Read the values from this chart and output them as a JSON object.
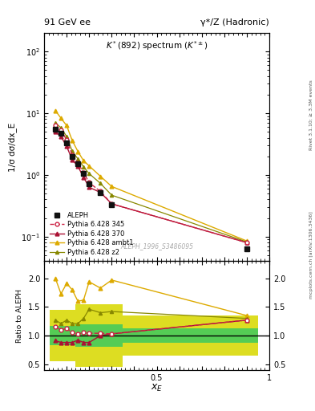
{
  "title_top_left": "91 GeV ee",
  "title_top_right": "γ*/Z (Hadronic)",
  "plot_title": "K*(892) spectrum (K*±)",
  "xlabel": "x_E",
  "ylabel_main": "1/σ dσ/dx_E",
  "ylabel_ratio": "Ratio to ALEPH",
  "watermark": "ALEPH_1996_S3486095",
  "right_label_top": "Rivet 3.1.10; ≥ 3.3M events",
  "right_label_bot": "mcplots.cern.ch [arXiv:1306.3436]",
  "aleph_x": [
    0.05,
    0.075,
    0.1,
    0.125,
    0.15,
    0.175,
    0.2,
    0.25,
    0.3,
    0.9
  ],
  "aleph_y": [
    5.5,
    4.8,
    3.3,
    2.0,
    1.5,
    1.05,
    0.72,
    0.52,
    0.33,
    0.063
  ],
  "p345_x": [
    0.05,
    0.075,
    0.1,
    0.125,
    0.15,
    0.175,
    0.2,
    0.25,
    0.3,
    0.9
  ],
  "p345_y": [
    6.3,
    5.3,
    3.7,
    2.1,
    1.55,
    1.1,
    0.75,
    0.54,
    0.34,
    0.08
  ],
  "p370_x": [
    0.05,
    0.075,
    0.1,
    0.125,
    0.15,
    0.175,
    0.2,
    0.25,
    0.3,
    0.9
  ],
  "p370_y": [
    5.0,
    4.2,
    2.9,
    1.76,
    1.38,
    0.92,
    0.63,
    0.52,
    0.34,
    0.08
  ],
  "pambt_x": [
    0.05,
    0.075,
    0.1,
    0.125,
    0.15,
    0.175,
    0.2,
    0.25,
    0.3,
    0.9
  ],
  "pambt_y": [
    11.0,
    8.3,
    6.3,
    3.6,
    2.4,
    1.7,
    1.4,
    0.95,
    0.65,
    0.085
  ],
  "pz2_x": [
    0.05,
    0.075,
    0.1,
    0.125,
    0.15,
    0.175,
    0.2,
    0.25,
    0.3,
    0.9
  ],
  "pz2_y": [
    7.0,
    5.8,
    4.2,
    2.42,
    1.82,
    1.36,
    1.05,
    0.73,
    0.47,
    0.082
  ],
  "ratio_x": [
    0.05,
    0.075,
    0.1,
    0.125,
    0.15,
    0.175,
    0.2,
    0.25,
    0.3,
    0.9
  ],
  "ratio_p345": [
    1.15,
    1.1,
    1.12,
    1.05,
    1.03,
    1.05,
    1.04,
    1.04,
    1.03,
    1.27
  ],
  "ratio_p370": [
    0.91,
    0.88,
    0.88,
    0.88,
    0.92,
    0.88,
    0.88,
    1.0,
    1.03,
    1.27
  ],
  "ratio_pambt": [
    2.0,
    1.73,
    1.91,
    1.8,
    1.6,
    1.62,
    1.94,
    1.83,
    1.97,
    1.35
  ],
  "ratio_pz2": [
    1.27,
    1.21,
    1.27,
    1.21,
    1.21,
    1.3,
    1.46,
    1.4,
    1.42,
    1.3
  ],
  "color_aleph": "#111111",
  "color_p345": "#cc2244",
  "color_p370": "#aa1133",
  "color_pambt": "#ddaa00",
  "color_pz2": "#888800",
  "color_green_band": "#55cc55",
  "color_yellow_band": "#dddd22",
  "ylim_main": [
    0.04,
    200
  ],
  "ylim_ratio": [
    0.4,
    2.3
  ],
  "xlim": [
    0.0,
    1.0
  ]
}
